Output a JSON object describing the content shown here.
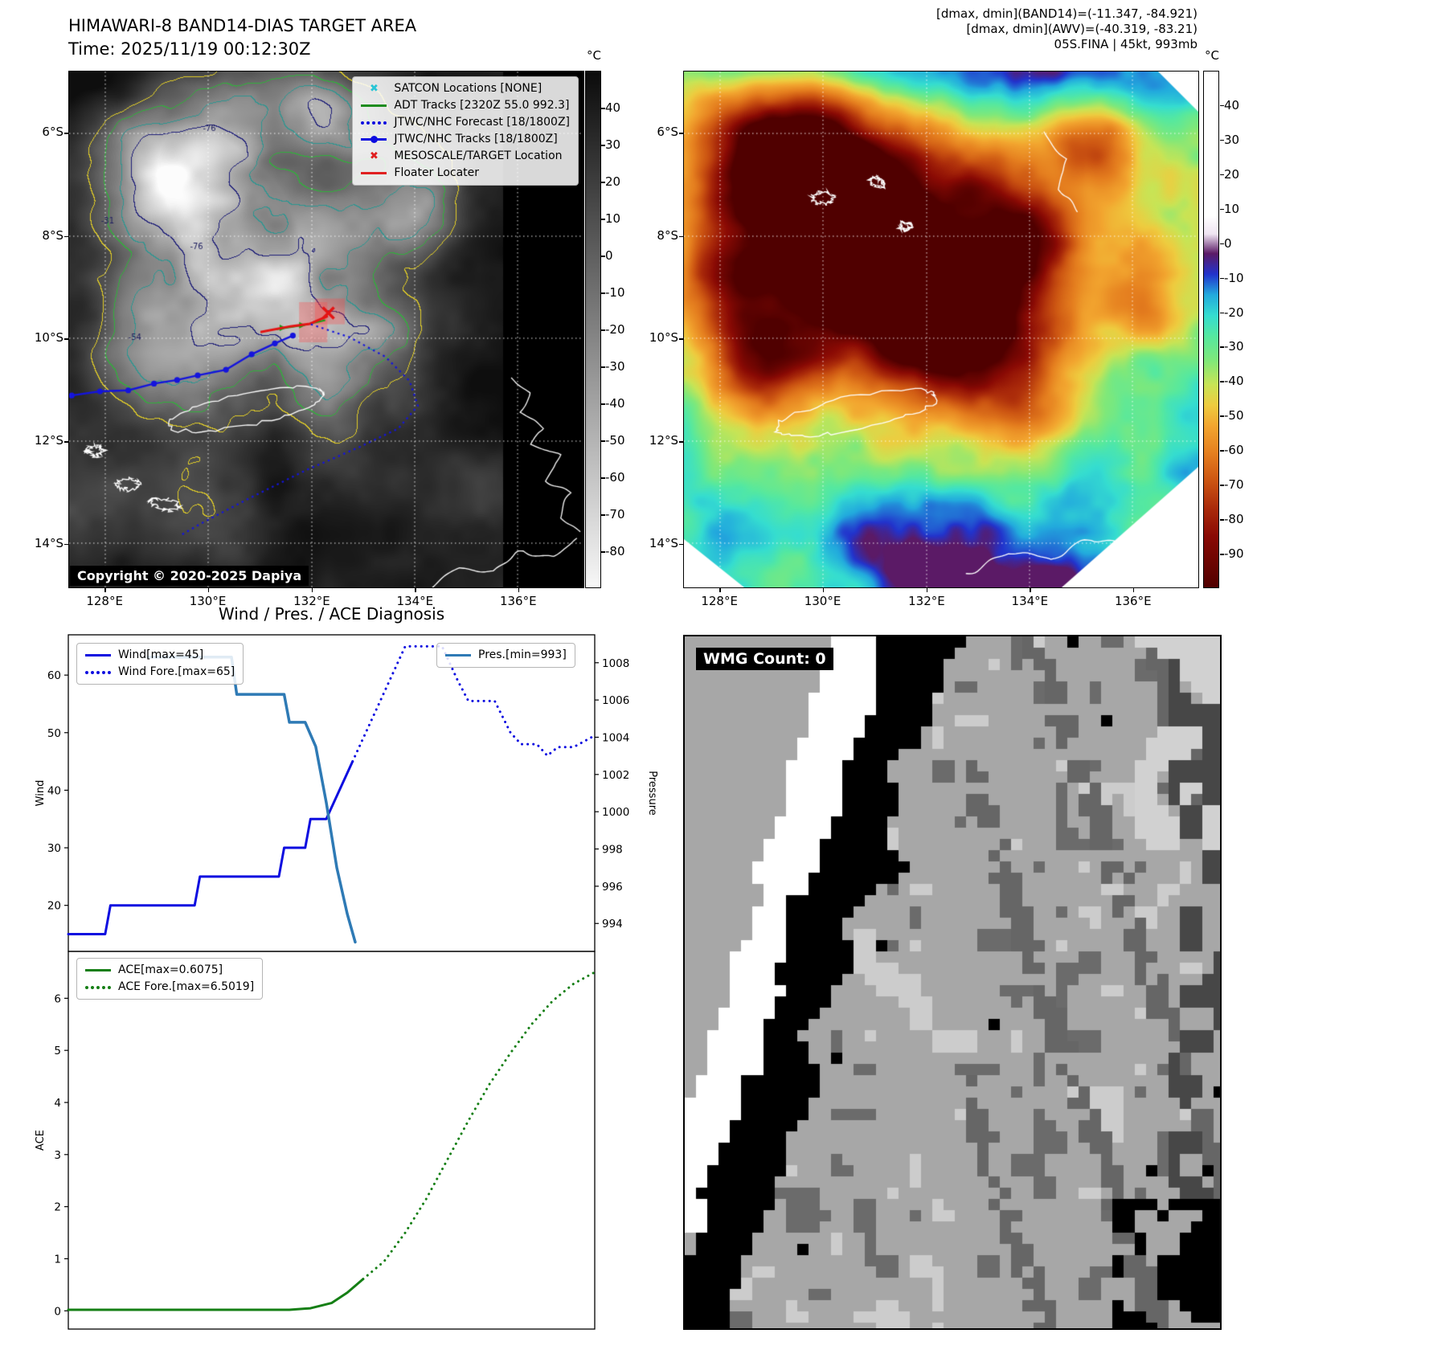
{
  "band14": {
    "title": "HIMAWARI-8 BAND14-DIAS TARGET AREA",
    "time": "Time: 2025/11/19 00:12:30Z",
    "copyright": "Copyright © 2020-2025 Dapiya",
    "colorbar": {
      "unit": "°C",
      "range": [
        50,
        -90
      ],
      "ticks": [
        40,
        30,
        20,
        10,
        0,
        -10,
        -20,
        -30,
        -40,
        -50,
        -60,
        -70,
        -80
      ]
    },
    "lat_ticks": [
      "6°S",
      "8°S",
      "10°S",
      "12°S",
      "14°S"
    ],
    "lon_ticks": [
      "128°E",
      "130°E",
      "132°E",
      "134°E",
      "136°E"
    ],
    "legend": [
      {
        "label": "SATCON Locations [NONE]",
        "marker": "x",
        "color": "#29c5d6"
      },
      {
        "label": "ADT Tracks [2320Z 55.0 992.3]",
        "marker": "line",
        "color": "#1e8c1e"
      },
      {
        "label": "JTWC/NHC Forecast [18/1800Z]",
        "marker": "dotted",
        "color": "#0d0de0"
      },
      {
        "label": "JTWC/NHC Tracks [18/1800Z]",
        "marker": "linedot",
        "color": "#0d0de0"
      },
      {
        "label": "MESOSCALE/TARGET Location",
        "marker": "x",
        "color": "#e02020"
      },
      {
        "label": "Floater Locater",
        "marker": "line",
        "color": "#e02020"
      }
    ],
    "contour_labels": [
      {
        "text": "-76",
        "fx": 0.26,
        "fy": 0.115
      },
      {
        "text": "-76",
        "fx": 0.235,
        "fy": 0.345
      },
      {
        "text": "-31",
        "fx": 0.062,
        "fy": 0.295
      },
      {
        "text": "-54",
        "fx": 0.115,
        "fy": 0.52
      }
    ]
  },
  "awv": {
    "header": [
      "[dmax, dmin](BAND14)=(-11.347, -84.921)",
      "[dmax, dmin](AWV)=(-40.319, -83.21)",
      "05S.FINA | 45kt, 993mb"
    ],
    "colorbar": {
      "unit": "°C",
      "range": [
        50,
        -100
      ],
      "ticks": [
        40,
        30,
        20,
        10,
        0,
        -10,
        -20,
        -30,
        -40,
        -50,
        -60,
        -70,
        -80,
        -90
      ]
    },
    "lat_ticks": [
      "6°S",
      "8°S",
      "10°S",
      "12°S",
      "14°S"
    ],
    "lon_ticks": [
      "128°E",
      "130°E",
      "132°E",
      "134°E",
      "136°E"
    ]
  },
  "wmg": {
    "label": "WMG Count: 0"
  },
  "chart_data": [
    {
      "type": "line",
      "title": "Wind / Pres. / ACE Diagnosis",
      "xlim": [
        0,
        100
      ],
      "ylabel_left": "Wind",
      "ylim_left": [
        12,
        67
      ],
      "yticks_left": [
        20,
        30,
        40,
        50,
        60
      ],
      "ylabel_right": "Pressure",
      "ylim_right": [
        992.5,
        1009.5
      ],
      "yticks_right": [
        994,
        996,
        998,
        1000,
        1002,
        1004,
        1006,
        1008
      ],
      "legend_left_entries": [
        "Wind[max=45]",
        "Wind Fore.[max=65]"
      ],
      "legend_right_entries": [
        "Pres.[min=993]"
      ],
      "series": [
        {
          "name": "Wind[max=45]",
          "axis": "left",
          "style": "solid",
          "color": "#0d0de0",
          "width": 3,
          "x": [
            0,
            7,
            8,
            24,
            25,
            40,
            41,
            45,
            46,
            49,
            54
          ],
          "y": [
            15,
            15,
            20,
            20,
            25,
            25,
            30,
            30,
            35,
            35,
            45
          ]
        },
        {
          "name": "Wind Fore.[max=65]",
          "axis": "left",
          "style": "dotted",
          "color": "#0d0de0",
          "width": 3,
          "x": [
            54,
            58,
            62,
            64,
            71,
            74,
            76,
            81,
            84,
            86,
            89,
            91,
            93,
            96,
            100
          ],
          "y": [
            45,
            53,
            61,
            65,
            65,
            59,
            55.5,
            55.5,
            50,
            48,
            48,
            46,
            47.5,
            47.5,
            49.5
          ]
        },
        {
          "name": "Pres.[min=993]",
          "axis": "right",
          "style": "solid",
          "color": "#2e7ab5",
          "width": 3.5,
          "x": [
            15,
            31,
            32,
            41,
            42,
            45,
            47,
            49,
            51,
            53,
            54.5
          ],
          "y": [
            1008.3,
            1008.3,
            1006.3,
            1006.3,
            1004.8,
            1004.8,
            1003.5,
            1000.5,
            997,
            994.5,
            993
          ]
        }
      ]
    },
    {
      "type": "line",
      "xlim": [
        0,
        100
      ],
      "ylabel_left": "ACE",
      "ylim_left": [
        -0.35,
        6.9
      ],
      "yticks_left": [
        0,
        1,
        2,
        3,
        4,
        5,
        6
      ],
      "legend_left_entries": [
        "ACE[max=0.6075]",
        "ACE Fore.[max=6.5019]"
      ],
      "series": [
        {
          "name": "ACE[max=0.6075]",
          "axis": "left",
          "style": "solid",
          "color": "#157f15",
          "width": 3,
          "x": [
            0,
            42,
            46,
            50,
            53,
            56
          ],
          "y": [
            0.02,
            0.02,
            0.05,
            0.15,
            0.35,
            0.61
          ]
        },
        {
          "name": "ACE Fore.[max=6.5019]",
          "axis": "left",
          "style": "dotted",
          "color": "#157f15",
          "width": 3,
          "x": [
            56,
            60,
            64,
            68,
            72,
            76,
            80,
            84,
            88,
            92,
            96,
            100
          ],
          "y": [
            0.61,
            0.95,
            1.5,
            2.15,
            2.9,
            3.65,
            4.35,
            4.95,
            5.5,
            5.95,
            6.28,
            6.5
          ]
        }
      ]
    }
  ]
}
